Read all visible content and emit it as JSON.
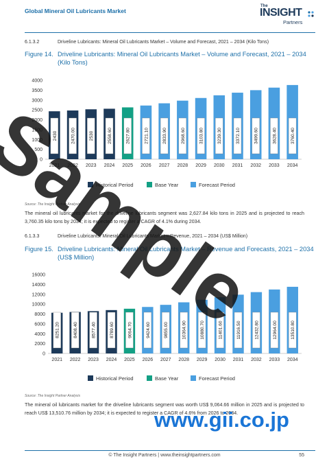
{
  "header": {
    "title": "Global Mineral Oil Lubricants Market"
  },
  "logo": {
    "the": "The",
    "main": "INSIGHT",
    "sub": "Partners"
  },
  "section1": {
    "number": "6.1.3.2",
    "text": "Driveline Lubricants: Mineral Oil Lubricants Market – Volume and Forecast, 2021 – 2034 (Kilo Tons)"
  },
  "figure1": {
    "label": "Figure 14.",
    "title": "Driveline Lubricants: Mineral Oil Lubricants Market – Volume and Forecast, 2021 – 2034 (Kilo Tons)"
  },
  "section2": {
    "number": "6.1.3.3",
    "text": "Driveline Lubricants: Mineral Oil Lubricants Market – Revenue, 2021 – 2034 (US$ Million)"
  },
  "figure2": {
    "label": "Figure 15.",
    "title": "Driveline Lubricants: Mineral Oil Lubricants Market – Revenue and Forecasts, 2021 – 2034 (US$ Million)"
  },
  "source1": "Source: The Insight Partner Analysis",
  "source2": "Source: The Insight Partner Analysis",
  "para1": "The mineral oil lubricants market for the driveline lubricants segment was 2,627.84 kilo tons in 2025 and is projected to reach 3,760.35 kilo tons by 2034; it is expected to register a CAGR of 4.1% during 2034.",
  "para2": "The mineral oil lubricants market for the driveline lubricants segment was worth US$ 9,064.66 million in 2025 and is projected to reach US$ 13,510.76 million by 2034; it is expected to register a CAGR of 4.6% from 2026 to 2034.",
  "footer": {
    "text": "© The Insight Partners    |    www.theinsightpartners.com",
    "page": "55"
  },
  "watermark": {
    "text": "Sample",
    "url": "www.gii.co.jp"
  },
  "colors": {
    "historical": "#1d3a5a",
    "base": "#13a085",
    "forecast": "#4a9fe0",
    "accent": "#1c6fa8"
  },
  "chart_data": [
    {
      "type": "bar",
      "categories": [
        "2021",
        "2022",
        "2023",
        "2024",
        "2025",
        "2026",
        "2027",
        "2028",
        "2029",
        "2030",
        "2031",
        "2032",
        "2033",
        "2034"
      ],
      "values": [
        2430,
        2470,
        2530,
        2558.6,
        2627.8,
        2721.1,
        2833.9,
        2968.6,
        3103.8,
        3239.3,
        3372.1,
        3499.6,
        3628.4,
        3760.4
      ],
      "labels": [
        "2430",
        "2470.00",
        "2530",
        "2558.60",
        "2627.80",
        "2721.10",
        "2833.90",
        "2968.60",
        "3103.80",
        "3239.30",
        "3372.10",
        "3499.60",
        "3628.40",
        "3760.40"
      ],
      "groups": [
        "historical",
        "historical",
        "historical",
        "historical",
        "base",
        "forecast",
        "forecast",
        "forecast",
        "forecast",
        "forecast",
        "forecast",
        "forecast",
        "forecast",
        "forecast"
      ],
      "ylim": [
        0,
        4000
      ],
      "yticks": [
        "0",
        "500",
        "1000",
        "1500",
        "2000",
        "2500",
        "3000",
        "3500",
        "4000"
      ],
      "legend": [
        "Historical Period",
        "Base Year",
        "Forecast Period"
      ]
    },
    {
      "type": "bar",
      "categories": [
        "2021",
        "2022",
        "2023",
        "2024",
        "2025",
        "2026",
        "2027",
        "2028",
        "2029",
        "2030",
        "2031",
        "2032",
        "2033",
        "2034"
      ],
      "values": [
        8251.2,
        8408.4,
        8577.4,
        8789.6,
        9064.7,
        9424.6,
        9855.0,
        10364.9,
        10880.7,
        11401.6,
        11916.5,
        12432.8,
        12964.0,
        13510.8
      ],
      "labels": [
        "8251.20",
        "8408.40",
        "8577.40",
        "8789.60",
        "9064.70",
        "9424.60",
        "9855.00",
        "10364.90",
        "10880.70",
        "11401.60",
        "11916.50",
        "12432.80",
        "12964.00",
        "13510.80"
      ],
      "groups": [
        "historical",
        "historical",
        "historical",
        "historical",
        "base",
        "forecast",
        "forecast",
        "forecast",
        "forecast",
        "forecast",
        "forecast",
        "forecast",
        "forecast",
        "forecast"
      ],
      "ylim": [
        0,
        16000
      ],
      "yticks": [
        "0",
        "2000",
        "4000",
        "6000",
        "8000",
        "10000",
        "12000",
        "14000",
        "16000"
      ],
      "legend": [
        "Historical Period",
        "Base Year",
        "Forecast Period"
      ]
    }
  ]
}
